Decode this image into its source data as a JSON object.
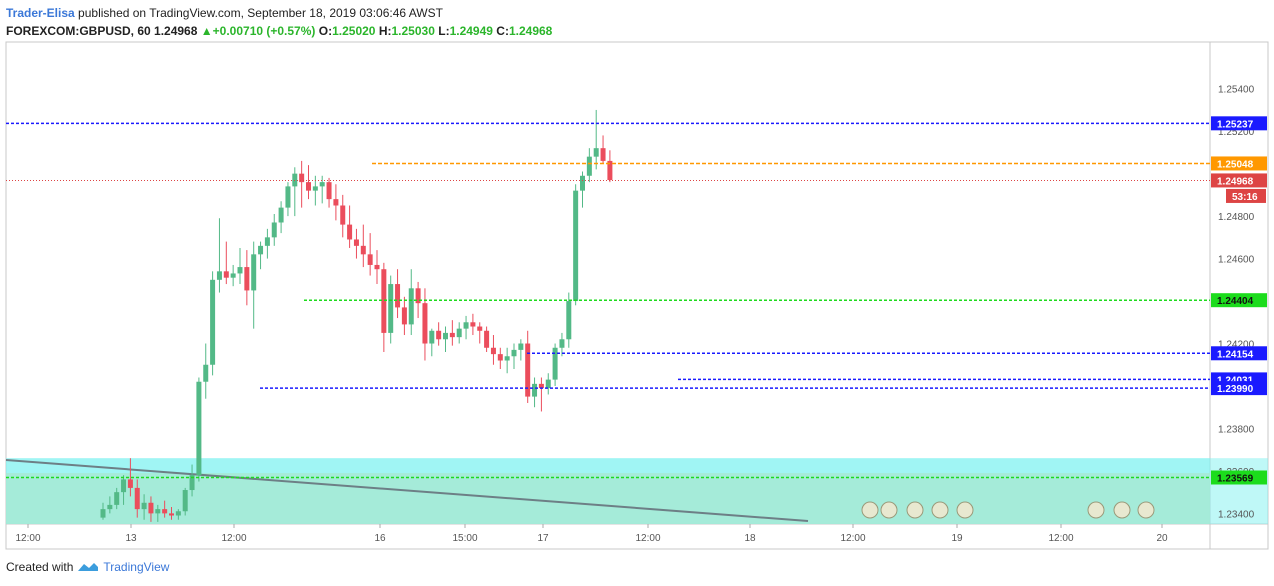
{
  "header": {
    "author": "Trader-Elisa",
    "published_text": "published on TradingView.com, September 18, 2019 03:06:46 AWST",
    "symbol": "FOREXCOM:GBPUSD, 60",
    "last": "1.24968",
    "change": "+0.00710 (+0.57%)",
    "o_label": "O:",
    "o_value": "1.25020",
    "h_label": "H:",
    "h_value": "1.25030",
    "l_label": "L:",
    "l_value": "1.24949",
    "c_label": "C:",
    "c_value": "1.24968"
  },
  "footer": {
    "created_with": "Created with",
    "brand": "TradingView"
  },
  "colors": {
    "up": "#53b987",
    "down": "#eb4d5c",
    "blue_line": "#1a1aff",
    "orange_line": "#ff9800",
    "green_line": "#1cdc1c",
    "price_line": "#d44",
    "zone_fill": "#80f2f0",
    "zone_fill2": "#a6e8d2"
  },
  "chart_data": {
    "type": "candlestick",
    "ylim": [
      1.2335,
      1.2562
    ],
    "y_ticks": [
      "1.25400",
      "1.25200",
      "1.24800",
      "1.24600",
      "1.24200",
      "1.23800",
      "1.23600",
      "1.23400"
    ],
    "x_ticks": [
      "12:00",
      "13",
      "12:00",
      "16",
      "15:00",
      "17",
      "12:00",
      "18",
      "12:00",
      "19",
      "12:00",
      "20"
    ],
    "levels": [
      {
        "label": "1.25237",
        "value": 1.25237,
        "kind": "blue"
      },
      {
        "label": "1.25048",
        "value": 1.25048,
        "kind": "orange"
      },
      {
        "label": "1.24968",
        "value": 1.24968,
        "kind": "price"
      },
      {
        "label": "53:16",
        "value": 1.24895,
        "kind": "timer"
      },
      {
        "label": "1.24404",
        "value": 1.24404,
        "kind": "green"
      },
      {
        "label": "1.24154",
        "value": 1.24154,
        "kind": "blue"
      },
      {
        "label": "1.24031",
        "value": 1.24031,
        "kind": "blue"
      },
      {
        "label": "1.23990",
        "value": 1.2399,
        "kind": "blue"
      },
      {
        "label": "1.23569",
        "value": 1.23569,
        "kind": "green"
      }
    ],
    "candles": [
      [
        1.2338,
        1.2345,
        1.2337,
        1.2342
      ],
      [
        1.2342,
        1.2348,
        1.234,
        1.2344
      ],
      [
        1.2344,
        1.2352,
        1.2342,
        1.235
      ],
      [
        1.235,
        1.2358,
        1.2344,
        1.2356
      ],
      [
        1.2356,
        1.2366,
        1.2348,
        1.2352
      ],
      [
        1.2352,
        1.2356,
        1.2338,
        1.2342
      ],
      [
        1.2342,
        1.2349,
        1.2337,
        1.2345
      ],
      [
        1.2345,
        1.2348,
        1.2336,
        1.234
      ],
      [
        1.234,
        1.2344,
        1.2336,
        1.2342
      ],
      [
        1.2342,
        1.2346,
        1.2338,
        1.234
      ],
      [
        1.234,
        1.2343,
        1.2337,
        1.2339
      ],
      [
        1.2339,
        1.2342,
        1.2337,
        1.2341
      ],
      [
        1.2341,
        1.2352,
        1.2339,
        1.2351
      ],
      [
        1.2351,
        1.2363,
        1.2348,
        1.2358
      ],
      [
        1.2358,
        1.2404,
        1.2355,
        1.2402
      ],
      [
        1.2402,
        1.242,
        1.2394,
        1.241
      ],
      [
        1.241,
        1.2454,
        1.2405,
        1.245
      ],
      [
        1.245,
        1.2479,
        1.2444,
        1.2454
      ],
      [
        1.2454,
        1.2468,
        1.2448,
        1.2451
      ],
      [
        1.2451,
        1.2457,
        1.2447,
        1.2453
      ],
      [
        1.2453,
        1.2465,
        1.2448,
        1.2456
      ],
      [
        1.2456,
        1.2464,
        1.2438,
        1.2445
      ],
      [
        1.2445,
        1.2468,
        1.2427,
        1.2462
      ],
      [
        1.2462,
        1.2468,
        1.2455,
        1.2466
      ],
      [
        1.2466,
        1.2474,
        1.246,
        1.247
      ],
      [
        1.247,
        1.2481,
        1.2466,
        1.2477
      ],
      [
        1.2477,
        1.2487,
        1.2472,
        1.2484
      ],
      [
        1.2484,
        1.2496,
        1.248,
        1.2494
      ],
      [
        1.2494,
        1.2503,
        1.248,
        1.25
      ],
      [
        1.25,
        1.2506,
        1.2484,
        1.2496
      ],
      [
        1.2496,
        1.2504,
        1.2488,
        1.2492
      ],
      [
        1.2492,
        1.2499,
        1.2485,
        1.2494
      ],
      [
        1.2494,
        1.2499,
        1.2486,
        1.2496
      ],
      [
        1.2496,
        1.2498,
        1.2484,
        1.2488
      ],
      [
        1.2488,
        1.2495,
        1.2478,
        1.2485
      ],
      [
        1.2485,
        1.249,
        1.247,
        1.2476
      ],
      [
        1.2476,
        1.2485,
        1.2465,
        1.2469
      ],
      [
        1.2469,
        1.2474,
        1.246,
        1.2466
      ],
      [
        1.2466,
        1.2476,
        1.2456,
        1.2462
      ],
      [
        1.2462,
        1.2472,
        1.2452,
        1.2457
      ],
      [
        1.2457,
        1.2464,
        1.2448,
        1.2455
      ],
      [
        1.2455,
        1.2458,
        1.2416,
        1.2425
      ],
      [
        1.2425,
        1.2452,
        1.242,
        1.2448
      ],
      [
        1.2448,
        1.2455,
        1.2432,
        1.2437
      ],
      [
        1.2437,
        1.2442,
        1.2424,
        1.2429
      ],
      [
        1.2429,
        1.2455,
        1.2424,
        1.2446
      ],
      [
        1.2446,
        1.2449,
        1.2432,
        1.2439
      ],
      [
        1.2439,
        1.2446,
        1.2412,
        1.242
      ],
      [
        1.242,
        1.2427,
        1.2414,
        1.2426
      ],
      [
        1.2426,
        1.243,
        1.2419,
        1.2422
      ],
      [
        1.2422,
        1.2428,
        1.2416,
        1.2425
      ],
      [
        1.2425,
        1.2431,
        1.2419,
        1.2423
      ],
      [
        1.2423,
        1.243,
        1.242,
        1.2427
      ],
      [
        1.2427,
        1.2433,
        1.2422,
        1.243
      ],
      [
        1.243,
        1.2434,
        1.2424,
        1.2428
      ],
      [
        1.2428,
        1.243,
        1.242,
        1.2426
      ],
      [
        1.2426,
        1.2428,
        1.2416,
        1.2418
      ],
      [
        1.2418,
        1.2424,
        1.241,
        1.2415
      ],
      [
        1.2415,
        1.2418,
        1.2408,
        1.2412
      ],
      [
        1.2412,
        1.2418,
        1.2406,
        1.2414
      ],
      [
        1.2414,
        1.242,
        1.2408,
        1.2417
      ],
      [
        1.2417,
        1.2422,
        1.2412,
        1.242
      ],
      [
        1.242,
        1.2426,
        1.2392,
        1.2395
      ],
      [
        1.2395,
        1.2404,
        1.239,
        1.2401
      ],
      [
        1.2401,
        1.2404,
        1.2388,
        1.2399
      ],
      [
        1.2399,
        1.2406,
        1.2396,
        1.2403
      ],
      [
        1.2403,
        1.242,
        1.24,
        1.2418
      ],
      [
        1.2418,
        1.2425,
        1.2414,
        1.2422
      ],
      [
        1.2422,
        1.2444,
        1.2418,
        1.244
      ],
      [
        1.244,
        1.2495,
        1.2438,
        1.2492
      ],
      [
        1.2492,
        1.2501,
        1.2484,
        1.2499
      ],
      [
        1.2499,
        1.2512,
        1.2496,
        1.2508
      ],
      [
        1.2508,
        1.253,
        1.2502,
        1.2512
      ],
      [
        1.2512,
        1.2518,
        1.2505,
        1.2506
      ],
      [
        1.2506,
        1.2511,
        1.2496,
        1.2497
      ]
    ]
  }
}
